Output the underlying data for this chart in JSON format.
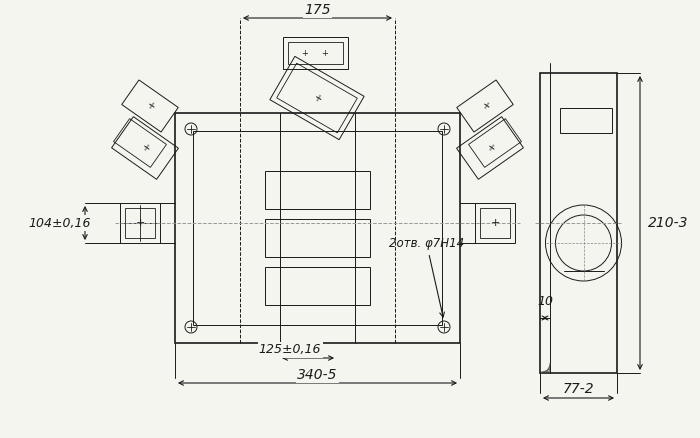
{
  "bg_color": "#f5f5f0",
  "line_color": "#1a1a1a",
  "dim_color": "#1a1a1a",
  "title": "",
  "fig_width": 7.0,
  "fig_height": 4.38,
  "dpi": 100,
  "annotations": {
    "dim_340": "340-5",
    "dim_125": "125±0,16",
    "dim_2otv": "2отв. φ7Н14",
    "dim_104": "104±0,16",
    "dim_175": "175",
    "dim_77": "77-2",
    "dim_10": "10",
    "dim_210": "210-3"
  }
}
